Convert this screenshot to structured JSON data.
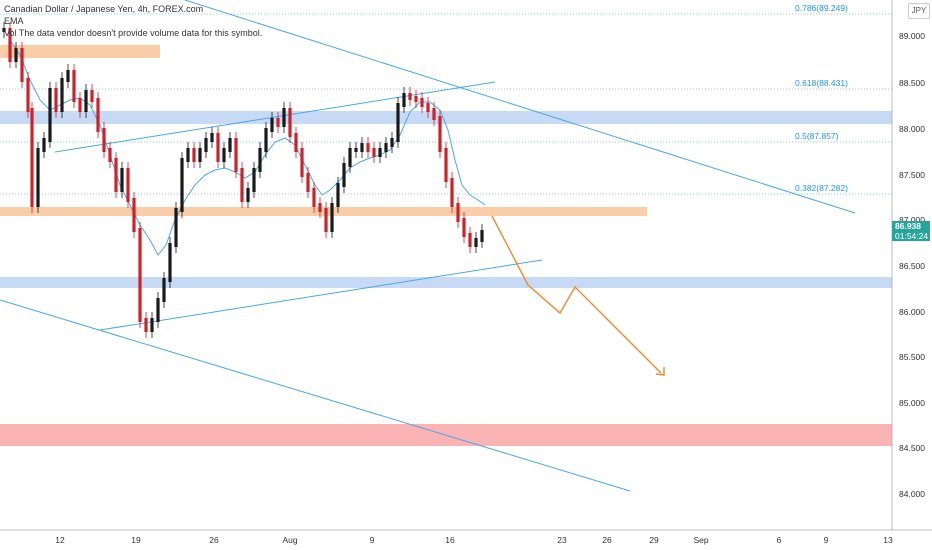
{
  "legend": {
    "symbol": "Canadian Dollar / Japanese Yen, 4h, FOREX.com",
    "ema_label": "EMA",
    "vol_label": "Vol",
    "vol_note": "The data vendor doesn't provide volume data for this symbol."
  },
  "currency_badge": "JPY",
  "price_tag": {
    "price": "86.938",
    "countdown": "01:54:24"
  },
  "colors": {
    "line": "#4aa8e8",
    "fib": "#2196f3",
    "candle_up": "#1a1a1a",
    "candle_down": "#d0212b",
    "orange_zone": "#f9cda7",
    "blue_zone": "#c6d9f5",
    "red_zone": "#fbb4b4",
    "projection": "#f08a2c",
    "tag": "#26a69a"
  },
  "chart_data": {
    "type": "candlestick",
    "y_ticks": [
      "89.000",
      "88.500",
      "88.000",
      "87.500",
      "87.000",
      "86.500",
      "86.000",
      "85.500",
      "85.000",
      "84.500",
      "84.000"
    ],
    "x_ticks": [
      "12",
      "19",
      "26",
      "Aug",
      "9",
      "16",
      "23",
      "26",
      "29",
      "Sep",
      "6",
      "9",
      "13"
    ],
    "fib_levels": [
      {
        "label": "0.786(89.249)",
        "value": 89.249
      },
      {
        "label": "0.618(88.431)",
        "value": 88.431
      },
      {
        "label": "0.5(87.857)",
        "value": 87.857
      },
      {
        "label": "0.382(87.282)",
        "value": 87.282
      }
    ],
    "zones": [
      {
        "kind": "orange",
        "from": 88.86,
        "to": 88.72
      },
      {
        "kind": "blue",
        "from": 88.17,
        "to": 88.04
      },
      {
        "kind": "orange",
        "from": 87.12,
        "to": 87.02
      },
      {
        "kind": "blue",
        "from": 86.35,
        "to": 86.23
      },
      {
        "kind": "red",
        "from": 84.78,
        "to": 84.55
      }
    ],
    "last_price": 86.938
  }
}
